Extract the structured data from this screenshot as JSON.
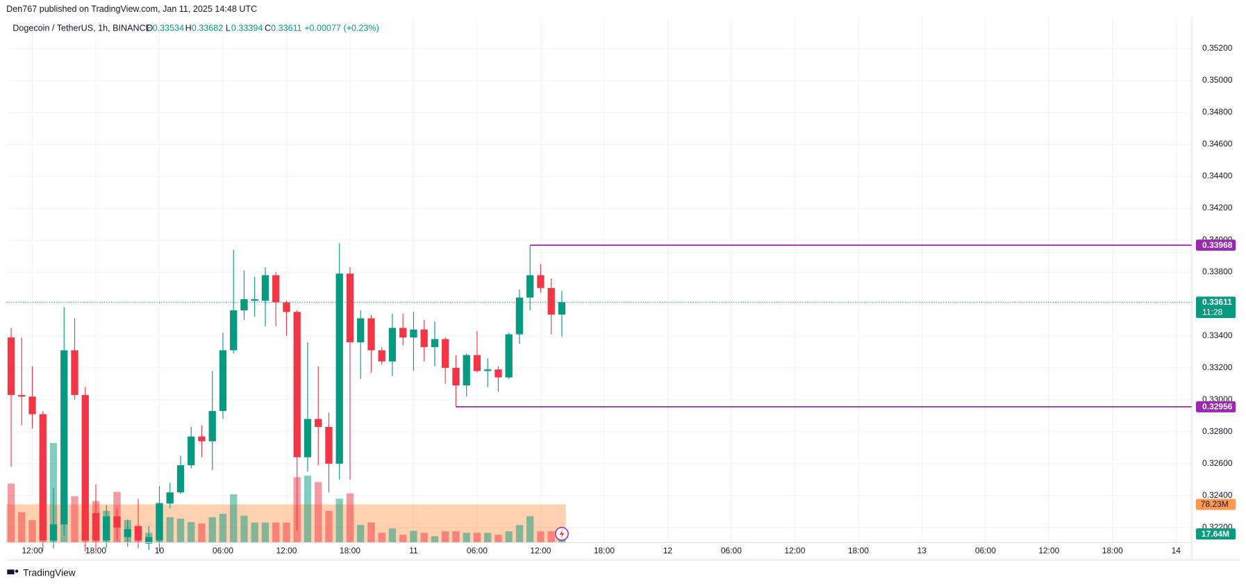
{
  "header": {
    "publisher": "Den767 published on TradingView.com, Jan 11, 2025 14:48 UTC"
  },
  "legend": {
    "symbol": "Dogecoin / TetherUS, 1h, BINANCE",
    "o_label": "O",
    "h_label": "H",
    "l_label": "L",
    "c_label": "C",
    "change": "+0.00077 (+0.23%)"
  },
  "chart_data": {
    "type": "candlestick",
    "up_color": "#089981",
    "down_color": "#f23645",
    "grid": true,
    "open": [
      0.3339,
      0.3303,
      0.3302,
      0.3291,
      0.3212,
      0.3222,
      0.3331,
      0.3303,
      0.3229,
      0.3212,
      0.3227,
      0.3214,
      0.3221,
      0.321,
      0.3212,
      0.3235,
      0.3242,
      0.3259,
      0.3277,
      0.3274,
      0.3293,
      0.3331,
      0.3356,
      0.3362,
      0.3362,
      0.3378,
      0.3361,
      0.3355,
      0.3264,
      0.3288,
      0.3283,
      0.326,
      0.3379,
      0.3336,
      0.3351,
      0.3331,
      0.3324,
      0.3345,
      0.3339,
      0.3344,
      0.3333,
      0.3338,
      0.332,
      0.3309,
      0.3328,
      0.3318,
      0.3319,
      0.3314,
      0.3341,
      0.3364,
      0.3378,
      0.337,
      0.33534
    ],
    "high": [
      0.3345,
      0.3339,
      0.3321,
      0.3293,
      0.3245,
      0.3358,
      0.3351,
      0.3308,
      0.3247,
      0.3234,
      0.3232,
      0.3225,
      0.3238,
      0.3221,
      0.3246,
      0.3248,
      0.3265,
      0.3283,
      0.3284,
      0.3318,
      0.3342,
      0.3394,
      0.3381,
      0.3377,
      0.3383,
      0.338,
      0.3362,
      0.3356,
      0.3336,
      0.3321,
      0.3292,
      0.3398,
      0.3383,
      0.3356,
      0.3353,
      0.3333,
      0.3354,
      0.3354,
      0.3355,
      0.335,
      0.3349,
      0.3339,
      0.3328,
      0.3329,
      0.3343,
      0.3326,
      0.3321,
      0.3342,
      0.3369,
      0.33968,
      0.3385,
      0.3376,
      0.33682
    ],
    "low": [
      0.3258,
      0.3284,
      0.3282,
      0.3205,
      0.3207,
      0.3215,
      0.33,
      0.3205,
      0.3205,
      0.3207,
      0.3212,
      0.3208,
      0.3207,
      0.3206,
      0.3205,
      0.3232,
      0.3241,
      0.3257,
      0.3264,
      0.3256,
      0.3288,
      0.3329,
      0.335,
      0.3352,
      0.3346,
      0.3346,
      0.334,
      0.3218,
      0.3255,
      0.3259,
      0.3242,
      0.325,
      0.325,
      0.3313,
      0.3317,
      0.3322,
      0.3315,
      0.3334,
      0.3318,
      0.3324,
      0.3321,
      0.331,
      0.32956,
      0.3302,
      0.3317,
      0.3308,
      0.3305,
      0.3313,
      0.3335,
      0.3356,
      0.3367,
      0.3341,
      0.33394
    ],
    "close": [
      0.3303,
      0.3302,
      0.3291,
      0.3212,
      0.3222,
      0.3331,
      0.3303,
      0.3212,
      0.3212,
      0.3227,
      0.322,
      0.3219,
      0.3212,
      0.3214,
      0.3235,
      0.3242,
      0.3259,
      0.3277,
      0.3274,
      0.3293,
      0.3331,
      0.3356,
      0.3363,
      0.3363,
      0.3378,
      0.3361,
      0.3355,
      0.3264,
      0.3288,
      0.3283,
      0.326,
      0.3379,
      0.3336,
      0.3351,
      0.3331,
      0.3324,
      0.3345,
      0.3339,
      0.3344,
      0.3333,
      0.3338,
      0.332,
      0.3309,
      0.3328,
      0.3318,
      0.3319,
      0.3314,
      0.3341,
      0.3364,
      0.3378,
      0.337,
      0.33534,
      0.33611
    ],
    "xlim": [
      -0.45,
      111.5
    ],
    "xticks": [
      {
        "value": 2,
        "label": "12:00"
      },
      {
        "value": 8,
        "label": "18:00"
      },
      {
        "value": 14,
        "label": "10"
      },
      {
        "value": 20,
        "label": "06:00"
      },
      {
        "value": 26,
        "label": "12:00"
      },
      {
        "value": 32,
        "label": "18:00"
      },
      {
        "value": 38,
        "label": "11"
      },
      {
        "value": 44,
        "label": "06:00"
      },
      {
        "value": 50,
        "label": "12:00"
      },
      {
        "value": 56,
        "label": "18:00"
      },
      {
        "value": 62,
        "label": "12"
      },
      {
        "value": 68,
        "label": "06:00"
      },
      {
        "value": 74,
        "label": "12:00"
      },
      {
        "value": 80,
        "label": "18:00"
      },
      {
        "value": 86,
        "label": "13"
      },
      {
        "value": 92,
        "label": "06:00"
      },
      {
        "value": 98,
        "label": "12:00"
      },
      {
        "value": 104,
        "label": "18:00"
      },
      {
        "value": 110,
        "label": "14"
      }
    ],
    "ylim": [
      0.32106,
      0.35394
    ],
    "yticks": [
      {
        "value": 0.322,
        "label": "0.32200"
      },
      {
        "value": 0.324,
        "label": "0.32400"
      },
      {
        "value": 0.326,
        "label": "0.32600"
      },
      {
        "value": 0.328,
        "label": "0.32800"
      },
      {
        "value": 0.33,
        "label": "0.33000"
      },
      {
        "value": 0.332,
        "label": "0.33200"
      },
      {
        "value": 0.334,
        "label": "0.33400"
      },
      {
        "value": 0.336,
        "label": "0.33600"
      },
      {
        "value": 0.338,
        "label": "0.33800"
      },
      {
        "value": 0.34,
        "label": "0.34000"
      },
      {
        "value": 0.342,
        "label": "0.34200"
      },
      {
        "value": 0.344,
        "label": "0.34400"
      },
      {
        "value": 0.346,
        "label": "0.34600"
      },
      {
        "value": 0.348,
        "label": "0.34800"
      },
      {
        "value": 0.35,
        "label": "0.35000"
      },
      {
        "value": 0.352,
        "label": "0.35200"
      }
    ],
    "levels": [
      {
        "value": 0.33968,
        "color": "#9c27b0"
      },
      {
        "value": 0.32956,
        "color": "#9c27b0"
      }
    ],
    "countdown": "11:28",
    "volume": {
      "values": [
        121,
        62,
        46,
        181,
        204,
        91,
        95,
        59,
        85,
        65,
        104,
        46,
        33,
        20,
        82,
        52,
        49,
        42,
        39,
        52,
        59,
        99,
        55,
        41,
        41,
        41,
        41,
        134,
        137,
        124,
        65,
        90,
        101,
        36,
        41,
        20,
        29,
        16,
        24,
        20,
        13,
        23,
        23,
        20,
        20,
        20,
        16,
        23,
        36,
        54,
        23,
        23,
        17.64
      ],
      "vlim": [
        0,
        1077
      ],
      "last_label": "17.64M",
      "ma": 78.23,
      "ma_label": "78.23M",
      "ma_color": "#ff9850"
    }
  },
  "footer": {
    "brand": "TradingView"
  }
}
